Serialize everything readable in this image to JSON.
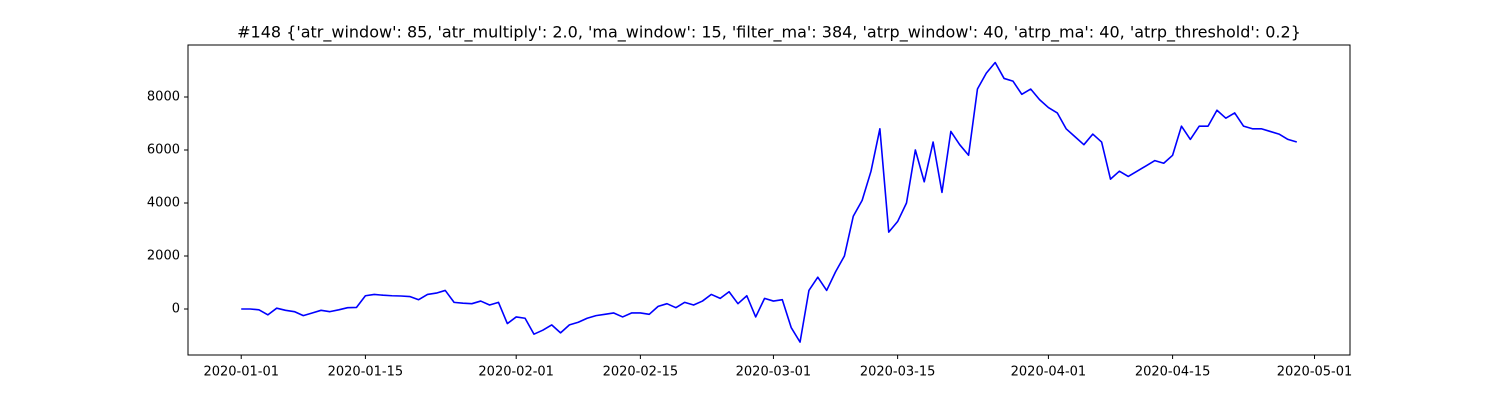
{
  "chart_data": {
    "type": "line",
    "title": "#148 {'atr_window': 85, 'atr_multiply': 2.0, 'ma_window': 15, 'filter_ma': 384, 'atrp_window': 40, 'atrp_ma': 40, 'atrp_threshold': 0.2}",
    "x": [
      "2020-01-01",
      "2020-01-02",
      "2020-01-03",
      "2020-01-04",
      "2020-01-05",
      "2020-01-06",
      "2020-01-07",
      "2020-01-08",
      "2020-01-09",
      "2020-01-10",
      "2020-01-11",
      "2020-01-12",
      "2020-01-13",
      "2020-01-14",
      "2020-01-15",
      "2020-01-16",
      "2020-01-17",
      "2020-01-18",
      "2020-01-19",
      "2020-01-20",
      "2020-01-21",
      "2020-01-22",
      "2020-01-23",
      "2020-01-24",
      "2020-01-25",
      "2020-01-26",
      "2020-01-27",
      "2020-01-28",
      "2020-01-29",
      "2020-01-30",
      "2020-01-31",
      "2020-02-01",
      "2020-02-02",
      "2020-02-03",
      "2020-02-04",
      "2020-02-05",
      "2020-02-06",
      "2020-02-07",
      "2020-02-08",
      "2020-02-09",
      "2020-02-10",
      "2020-02-11",
      "2020-02-12",
      "2020-02-13",
      "2020-02-14",
      "2020-02-15",
      "2020-02-16",
      "2020-02-17",
      "2020-02-18",
      "2020-02-19",
      "2020-02-20",
      "2020-02-21",
      "2020-02-22",
      "2020-02-23",
      "2020-02-24",
      "2020-02-25",
      "2020-02-26",
      "2020-02-27",
      "2020-02-28",
      "2020-02-29",
      "2020-03-01",
      "2020-03-02",
      "2020-03-03",
      "2020-03-04",
      "2020-03-05",
      "2020-03-06",
      "2020-03-07",
      "2020-03-08",
      "2020-03-09",
      "2020-03-10",
      "2020-03-11",
      "2020-03-12",
      "2020-03-13",
      "2020-03-14",
      "2020-03-15",
      "2020-03-16",
      "2020-03-17",
      "2020-03-18",
      "2020-03-19",
      "2020-03-20",
      "2020-03-21",
      "2020-03-22",
      "2020-03-23",
      "2020-03-24",
      "2020-03-25",
      "2020-03-26",
      "2020-03-27",
      "2020-03-28",
      "2020-03-29",
      "2020-03-30",
      "2020-03-31",
      "2020-04-01",
      "2020-04-02",
      "2020-04-03",
      "2020-04-04",
      "2020-04-05",
      "2020-04-06",
      "2020-04-07",
      "2020-04-08",
      "2020-04-09",
      "2020-04-10",
      "2020-04-11",
      "2020-04-12",
      "2020-04-13",
      "2020-04-14",
      "2020-04-15",
      "2020-04-16",
      "2020-04-17",
      "2020-04-18",
      "2020-04-19",
      "2020-04-20",
      "2020-04-21",
      "2020-04-22",
      "2020-04-23",
      "2020-04-24",
      "2020-04-25",
      "2020-04-26",
      "2020-04-27",
      "2020-04-28",
      "2020-04-29"
    ],
    "series": [
      {
        "color": "#0000ff",
        "values": [
          0,
          0,
          -30,
          -220,
          30,
          -50,
          -100,
          -250,
          -150,
          -50,
          -100,
          -30,
          50,
          60,
          500,
          550,
          520,
          500,
          490,
          470,
          350,
          550,
          600,
          700,
          250,
          220,
          200,
          300,
          150,
          250,
          -550,
          -300,
          -350,
          -950,
          -800,
          -600,
          -900,
          -600,
          -500,
          -350,
          -250,
          -200,
          -150,
          -300,
          -150,
          -150,
          -200,
          100,
          200,
          50,
          250,
          150,
          300,
          550,
          400,
          650,
          200,
          500,
          -300,
          400,
          300,
          350,
          -700,
          -1250,
          700,
          1200,
          700,
          1400,
          2000,
          3500,
          4100,
          5200,
          6800,
          2900,
          3300,
          4000,
          6000,
          4800,
          6300,
          4400,
          6700,
          6200,
          5800,
          8300,
          8900,
          9300,
          8700,
          8600,
          8100,
          8300,
          7900,
          7600,
          7400,
          6800,
          6500,
          6200,
          6600,
          6300,
          4900,
          5200,
          5000,
          5200,
          5400,
          5600,
          5500,
          5800,
          6900,
          6400,
          6900,
          6900,
          7500,
          7200,
          7400,
          6900,
          6800,
          6800,
          6700,
          6600,
          6400,
          6300
        ]
      }
    ],
    "xlim": [
      "2019-12-26",
      "2020-05-05"
    ],
    "xticks": [
      "2020-01-01",
      "2020-01-15",
      "2020-02-01",
      "2020-02-15",
      "2020-03-01",
      "2020-03-15",
      "2020-04-01",
      "2020-04-15",
      "2020-05-01"
    ],
    "ylim": [
      -1736,
      9962
    ],
    "yticks": [
      0,
      2000,
      4000,
      6000,
      8000
    ],
    "grid": false
  }
}
